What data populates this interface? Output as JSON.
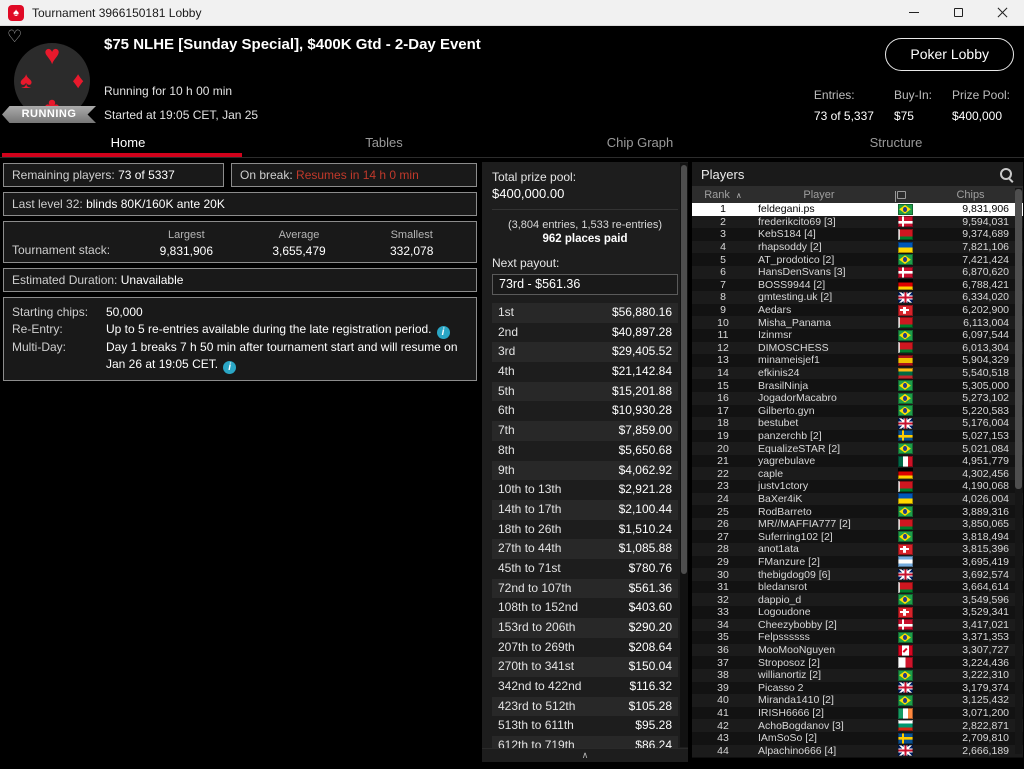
{
  "window": {
    "title": "Tournament 3966150181 Lobby"
  },
  "header": {
    "title": "$75 NLHE [Sunday Special], $400K Gtd - 2-Day Event",
    "running_for": "Running for 10 h 00 min",
    "status_badge": "RUNNING",
    "started": "Started at 19:05 CET, Jan 25",
    "poker_lobby_button": "Poker Lobby",
    "stats": [
      {
        "label": "Entries:",
        "value": "73 of 5,337"
      },
      {
        "label": "Buy-In:",
        "value": "$75"
      },
      {
        "label": "Prize Pool:",
        "value": "$400,000"
      }
    ]
  },
  "tabs": [
    {
      "label": "Home",
      "active": true
    },
    {
      "label": "Tables",
      "active": false
    },
    {
      "label": "Chip Graph",
      "active": false
    },
    {
      "label": "Structure",
      "active": false
    }
  ],
  "home": {
    "remaining_players_label": "Remaining players:",
    "remaining_players_value": "73 of 5337",
    "on_break_label": "On break:",
    "on_break_value": "Resumes in 14 h 0 min",
    "last_level_label": "Last level 32:",
    "last_level_value": "blinds 80K/160K ante 20K",
    "stack_label": "Tournament stack:",
    "stack_columns": [
      {
        "label": "Largest",
        "value": "9,831,906"
      },
      {
        "label": "Average",
        "value": "3,655,479"
      },
      {
        "label": "Smallest",
        "value": "332,078"
      }
    ],
    "estimated_duration_label": "Estimated Duration:",
    "estimated_duration_value": "Unavailable",
    "details": [
      {
        "label": "Starting chips:",
        "text": "50,000"
      },
      {
        "label": "Re-Entry:",
        "text": "Up to 5 re-entries available during the late registration period."
      },
      {
        "label": "Multi-Day:",
        "text": "Day 1 breaks 7 h 50 min after tournament start and will resume on Jan 26 at 19:05 CET."
      }
    ]
  },
  "payouts": {
    "total_label": "Total prize pool:",
    "total_value": "$400,000.00",
    "entries_note": "(3,804 entries, 1,533 re-entries)",
    "places_paid": "962 places paid",
    "next_payout_label": "Next payout:",
    "next_payout_value": "73rd - $561.36",
    "rows": [
      {
        "place": "1st",
        "amount": "$56,880.16"
      },
      {
        "place": "2nd",
        "amount": "$40,897.28"
      },
      {
        "place": "3rd",
        "amount": "$29,405.52"
      },
      {
        "place": "4th",
        "amount": "$21,142.84"
      },
      {
        "place": "5th",
        "amount": "$15,201.88"
      },
      {
        "place": "6th",
        "amount": "$10,930.28"
      },
      {
        "place": "7th",
        "amount": "$7,859.00"
      },
      {
        "place": "8th",
        "amount": "$5,650.68"
      },
      {
        "place": "9th",
        "amount": "$4,062.92"
      },
      {
        "place": "10th to 13th",
        "amount": "$2,921.28"
      },
      {
        "place": "14th to 17th",
        "amount": "$2,100.44"
      },
      {
        "place": "18th to 26th",
        "amount": "$1,510.24"
      },
      {
        "place": "27th to 44th",
        "amount": "$1,085.88"
      },
      {
        "place": "45th to 71st",
        "amount": "$780.76"
      },
      {
        "place": "72nd to 107th",
        "amount": "$561.36"
      },
      {
        "place": "108th to 152nd",
        "amount": "$403.60"
      },
      {
        "place": "153rd to 206th",
        "amount": "$290.20"
      },
      {
        "place": "207th to 269th",
        "amount": "$208.64"
      },
      {
        "place": "270th to 341st",
        "amount": "$150.04"
      },
      {
        "place": "342nd to 422nd",
        "amount": "$116.32"
      },
      {
        "place": "423rd to 512th",
        "amount": "$105.28"
      },
      {
        "place": "513th to 611th",
        "amount": "$95.28"
      },
      {
        "place": "612th to 719th",
        "amount": "$86.24"
      }
    ]
  },
  "players": {
    "title": "Players",
    "columns": {
      "rank": "Rank",
      "player": "Player",
      "chips": "Chips"
    },
    "rows": [
      {
        "rank": "1",
        "name": "feldegani.ps",
        "flag": "br",
        "chips": "9,831,906",
        "highlight": true
      },
      {
        "rank": "2",
        "name": "frederikcito69 [3]",
        "flag": "dk",
        "chips": "9,594,031"
      },
      {
        "rank": "3",
        "name": "KebS184 [4]",
        "flag": "by",
        "chips": "9,374,689"
      },
      {
        "rank": "4",
        "name": "rhapsoddy [2]",
        "flag": "ua",
        "chips": "7,821,106"
      },
      {
        "rank": "5",
        "name": "AT_prodotico [2]",
        "flag": "br",
        "chips": "7,421,424"
      },
      {
        "rank": "6",
        "name": "HansDenSvans [3]",
        "flag": "dk",
        "chips": "6,870,620"
      },
      {
        "rank": "7",
        "name": "BOSS9944 [2]",
        "flag": "de",
        "chips": "6,788,421"
      },
      {
        "rank": "8",
        "name": "gmtesting.uk [2]",
        "flag": "gb",
        "chips": "6,334,020"
      },
      {
        "rank": "9",
        "name": "Aedars",
        "flag": "ch",
        "chips": "6,202,900"
      },
      {
        "rank": "10",
        "name": "Misha_Panama",
        "flag": "by",
        "chips": "6,113,004"
      },
      {
        "rank": "11",
        "name": "Izinmsr",
        "flag": "br",
        "chips": "6,097,544"
      },
      {
        "rank": "12",
        "name": "DIMOSCHESS",
        "flag": "by",
        "chips": "6,013,304"
      },
      {
        "rank": "13",
        "name": "minameisjef1",
        "flag": "es",
        "chips": "5,904,329"
      },
      {
        "rank": "14",
        "name": "efkinis24",
        "flag": "lt",
        "chips": "5,540,518"
      },
      {
        "rank": "15",
        "name": "BrasilNinja",
        "flag": "br",
        "chips": "5,305,000"
      },
      {
        "rank": "16",
        "name": "JogadorMacabro",
        "flag": "br",
        "chips": "5,273,102"
      },
      {
        "rank": "17",
        "name": "Gilberto.gyn",
        "flag": "br",
        "chips": "5,220,583"
      },
      {
        "rank": "18",
        "name": "bestubet",
        "flag": "gb",
        "chips": "5,176,004"
      },
      {
        "rank": "19",
        "name": "panzerchb [2]",
        "flag": "se",
        "chips": "5,027,153"
      },
      {
        "rank": "20",
        "name": "EqualizeSTAR [2]",
        "flag": "br",
        "chips": "5,021,084"
      },
      {
        "rank": "21",
        "name": "yagrebulave",
        "flag": "mx",
        "chips": "4,951,779"
      },
      {
        "rank": "22",
        "name": "caple",
        "flag": "de",
        "chips": "4,302,456"
      },
      {
        "rank": "23",
        "name": "justv1ctory",
        "flag": "by",
        "chips": "4,190,068"
      },
      {
        "rank": "24",
        "name": "BaXer4iK",
        "flag": "ua",
        "chips": "4,026,004"
      },
      {
        "rank": "25",
        "name": "RodBarreto",
        "flag": "br",
        "chips": "3,889,316"
      },
      {
        "rank": "26",
        "name": "MR//MAFFIA777 [2]",
        "flag": "by",
        "chips": "3,850,065"
      },
      {
        "rank": "27",
        "name": "Suferring102 [2]",
        "flag": "br",
        "chips": "3,818,494"
      },
      {
        "rank": "28",
        "name": "anot1ata",
        "flag": "ch",
        "chips": "3,815,396"
      },
      {
        "rank": "29",
        "name": "FManzure [2]",
        "flag": "ar",
        "chips": "3,695,419"
      },
      {
        "rank": "30",
        "name": "thebigdog09 [6]",
        "flag": "gb",
        "chips": "3,692,574"
      },
      {
        "rank": "31",
        "name": "bledansrot",
        "flag": "by",
        "chips": "3,664,614"
      },
      {
        "rank": "32",
        "name": "dappio_d",
        "flag": "br",
        "chips": "3,549,596"
      },
      {
        "rank": "33",
        "name": "Logoudone",
        "flag": "ch",
        "chips": "3,529,341"
      },
      {
        "rank": "34",
        "name": "Cheezybobby [2]",
        "flag": "dk",
        "chips": "3,417,021"
      },
      {
        "rank": "35",
        "name": "Felpssssss",
        "flag": "br",
        "chips": "3,371,353"
      },
      {
        "rank": "36",
        "name": "MooMooNguyen",
        "flag": "ca",
        "chips": "3,307,727"
      },
      {
        "rank": "37",
        "name": "Stroposoz [2]",
        "flag": "mt",
        "chips": "3,224,436"
      },
      {
        "rank": "38",
        "name": "willianortiz [2]",
        "flag": "br",
        "chips": "3,222,310"
      },
      {
        "rank": "39",
        "name": "Picasso 2",
        "flag": "gb",
        "chips": "3,179,374"
      },
      {
        "rank": "40",
        "name": "Miranda1410 [2]",
        "flag": "br",
        "chips": "3,125,432"
      },
      {
        "rank": "41",
        "name": "IRISH6666 [2]",
        "flag": "ie",
        "chips": "3,071,200"
      },
      {
        "rank": "42",
        "name": "AchoBogdanov [3]",
        "flag": "bg",
        "chips": "2,822,871"
      },
      {
        "rank": "43",
        "name": "IAmSoSo [2]",
        "flag": "se",
        "chips": "2,709,810"
      },
      {
        "rank": "44",
        "name": "Alpachino666 [4]",
        "flag": "gb",
        "chips": "2,666,189"
      }
    ]
  },
  "colors": {
    "accent_red": "#d0021b",
    "on_break_red": "#c0392b",
    "info_blue": "#2aa6c5",
    "highlight_row_bg": "#ffffff",
    "running_badge_gray": "#8f8f8f",
    "panel_bg": "#1d1d1d"
  }
}
